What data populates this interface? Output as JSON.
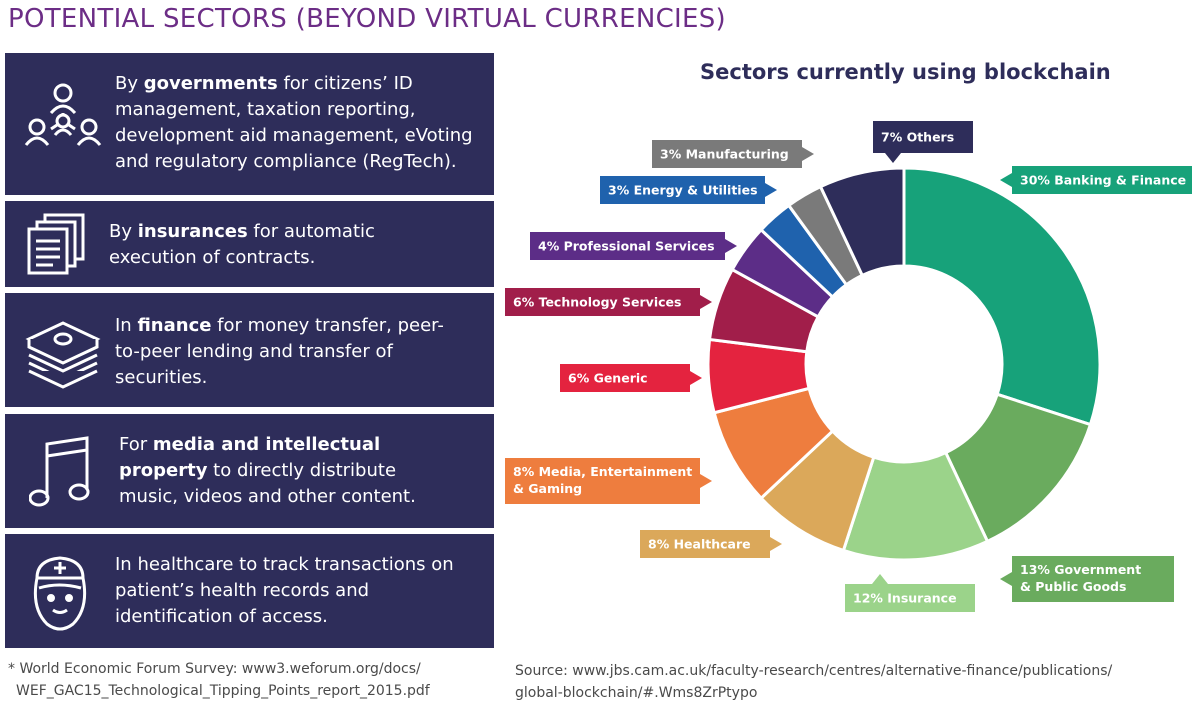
{
  "page_title": "POTENTIAL SECTORS (BEYOND VIRTUAL CURRENCIES)",
  "panels": [
    {
      "before": "By ",
      "bold": "governments",
      "after": " for citizens’ ID management, taxation reporting, development aid management, eVoting and regulatory compliance (RegTech).",
      "icon": "people-network-icon"
    },
    {
      "before": "By ",
      "bold": "insurances",
      "after": " for automatic execution of contracts.",
      "icon": "documents-stack-icon"
    },
    {
      "before": "In ",
      "bold": "finance",
      "after": " for money transfer, peer-to-peer lending and transfer of securities.",
      "icon": "money-stack-icon"
    },
    {
      "before": "For ",
      "bold": "media and intellectual property",
      "after": " to directly distribute music, videos and other content.",
      "icon": "music-note-icon"
    },
    {
      "before": "In healthcare to track transactions on patient’s health records and identification of access.",
      "bold": "",
      "after": "",
      "icon": "nurse-icon"
    }
  ],
  "footnote": {
    "line1": "* World Economic Forum Survey: www3.weforum.org/docs/",
    "line2": "WEF_GAC15_Technological_Tipping_Points_report_2015.pdf"
  },
  "source": {
    "line1": "Source: www.jbs.cam.ac.uk/faculty-research/centres/alternative-finance/publications/",
    "line2": "global-blockchain/#.Wms8ZrPtypo"
  },
  "chart_data": {
    "type": "pie",
    "style": "donut",
    "title": "Sectors currently using blockchain",
    "slices": [
      {
        "label": "Banking & Finance",
        "value": 30,
        "display": "30% Banking & Finance",
        "color": "#17a27a"
      },
      {
        "label": "Government & Public Goods",
        "value": 13,
        "display": "13% Government & Public Goods",
        "color": "#6aab5e"
      },
      {
        "label": "Insurance",
        "value": 12,
        "display": "12% Insurance",
        "color": "#9bd38a"
      },
      {
        "label": "Healthcare",
        "value": 8,
        "display": "8% Healthcare",
        "color": "#dba85a"
      },
      {
        "label": "Media, Entertainment & Gaming",
        "value": 8,
        "display": "8% Media, Entertainment & Gaming",
        "color": "#ee7d3e"
      },
      {
        "label": "Generic",
        "value": 6,
        "display": "6% Generic",
        "color": "#e4233f"
      },
      {
        "label": "Technology Services",
        "value": 6,
        "display": "6% Technology Services",
        "color": "#a11e4a"
      },
      {
        "label": "Professional Services",
        "value": 4,
        "display": "4% Professional Services",
        "color": "#5c2d87"
      },
      {
        "label": "Energy & Utilities",
        "value": 3,
        "display": "3% Energy & Utilities",
        "color": "#1f62ad"
      },
      {
        "label": "Manufacturing",
        "value": 3,
        "display": "3% Manufacturing",
        "color": "#7a7a7a"
      },
      {
        "label": "Others",
        "value": 7,
        "display": "7% Others",
        "color": "#2e2d5a"
      }
    ]
  }
}
